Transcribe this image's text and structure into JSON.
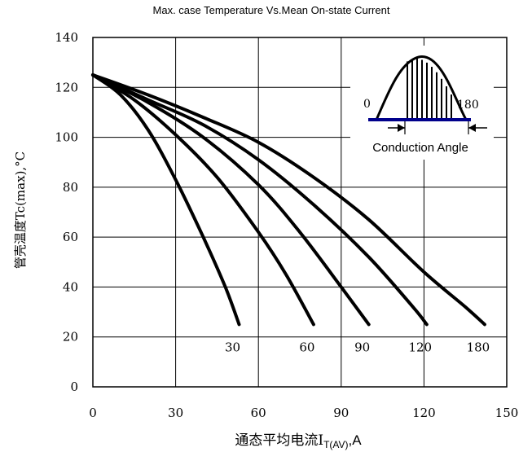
{
  "chart_data": {
    "type": "line",
    "title": "Max. case Temperature Vs.Mean On-state Current",
    "ylabel": "管壳温度Tc(max),°C",
    "xlabel_main": "通态平均电流I",
    "xlabel_sub": "T(AV)",
    "xlabel_tail": ",A",
    "xlim": [
      0,
      150
    ],
    "ylim": [
      0,
      140
    ],
    "x_ticks": [
      0,
      30,
      60,
      90,
      120,
      150
    ],
    "y_ticks": [
      0,
      20,
      40,
      60,
      80,
      100,
      120,
      140
    ],
    "grid": true,
    "series": [
      {
        "name": "30",
        "points": [
          [
            0,
            125
          ],
          [
            10,
            117
          ],
          [
            20,
            103
          ],
          [
            30,
            83
          ],
          [
            40,
            60
          ],
          [
            48,
            40
          ],
          [
            53,
            25
          ]
        ]
      },
      {
        "name": "60",
        "points": [
          [
            0,
            125
          ],
          [
            15,
            115
          ],
          [
            30,
            101
          ],
          [
            45,
            84
          ],
          [
            60,
            62
          ],
          [
            70,
            45
          ],
          [
            80,
            25
          ]
        ]
      },
      {
        "name": "90",
        "points": [
          [
            0,
            125
          ],
          [
            20,
            114
          ],
          [
            40,
            100
          ],
          [
            60,
            81
          ],
          [
            75,
            62
          ],
          [
            90,
            40
          ],
          [
            100,
            25
          ]
        ]
      },
      {
        "name": "120",
        "points": [
          [
            0,
            125
          ],
          [
            20,
            115
          ],
          [
            40,
            105
          ],
          [
            60,
            91
          ],
          [
            80,
            73
          ],
          [
            100,
            52
          ],
          [
            116,
            32
          ],
          [
            121,
            25
          ]
        ]
      },
      {
        "name": "180",
        "points": [
          [
            0,
            125
          ],
          [
            20,
            117
          ],
          [
            40,
            108
          ],
          [
            60,
            98
          ],
          [
            80,
            84
          ],
          [
            100,
            67
          ],
          [
            120,
            46
          ],
          [
            135,
            32
          ],
          [
            142,
            25
          ]
        ]
      }
    ],
    "inset": {
      "start_label": "0",
      "end_label": "180",
      "caption": "Conduction Angle"
    }
  }
}
